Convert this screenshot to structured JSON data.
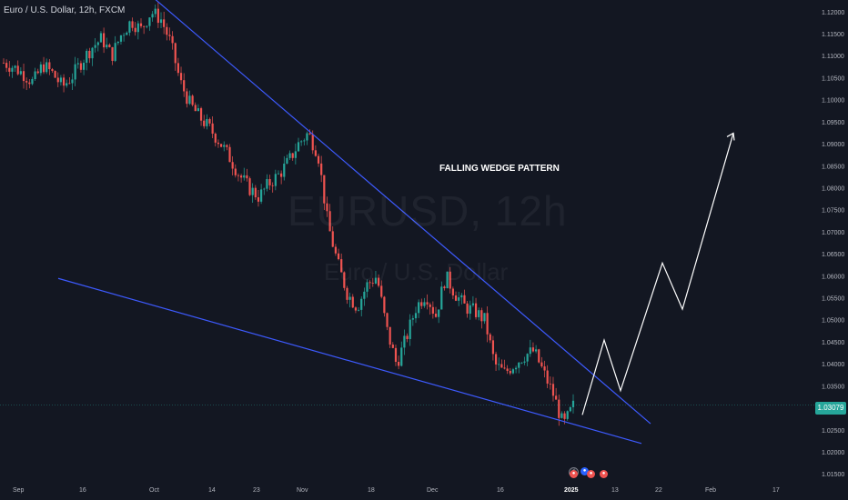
{
  "header": {
    "symbol_title": "Euro / U.S. Dollar, 12h, FXCM"
  },
  "annotations": {
    "pattern_label": "FALLING WEDGE PATTERN"
  },
  "watermark": {
    "symbol": "EURUSD, 12h",
    "description": "Euro / U.S. Dollar"
  },
  "current_price": {
    "label": "1.03079",
    "value": 1.03079,
    "color": "#26a69a"
  },
  "colors": {
    "background": "#131722",
    "up": "#26a69a",
    "down": "#ef5350",
    "trendline": "#3d5afe",
    "projection": "#ffffff"
  },
  "events": {
    "icons": [
      "lightning-icon",
      "flag-icon",
      "flag-icon",
      "flag-icon",
      "flag-icon"
    ]
  },
  "chart_data": {
    "type": "candlestick",
    "instrument": "EURUSD",
    "timeframe": "12h",
    "x_axis": {
      "ticks": [
        "Sep",
        "16",
        "Oct",
        "14",
        "23",
        "Nov",
        "18",
        "Dec",
        "16",
        "2025",
        "13",
        "22",
        "Feb",
        "17"
      ],
      "bold_tick": "2025"
    },
    "y_axis": {
      "ticks": [
        "1.12000",
        "1.11500",
        "1.11000",
        "1.10500",
        "1.10000",
        "1.09500",
        "1.09000",
        "1.08500",
        "1.08000",
        "1.07500",
        "1.07000",
        "1.06500",
        "1.06000",
        "1.05500",
        "1.05000",
        "1.04500",
        "1.04000",
        "1.03500",
        "1.03000",
        "1.02500",
        "1.02000",
        "1.01500"
      ],
      "range": [
        1.0135,
        1.1215
      ],
      "position": "right"
    },
    "price_path_closes": [
      1.1085,
      1.1075,
      1.106,
      1.104,
      1.108,
      1.106,
      1.103,
      1.1055,
      1.109,
      1.112,
      1.114,
      1.11,
      1.115,
      1.118,
      1.116,
      1.12,
      1.1185,
      1.113,
      1.104,
      1.099,
      1.096,
      1.0935,
      1.0905,
      1.087,
      1.083,
      1.08,
      1.078,
      1.081,
      1.083,
      1.086,
      1.09,
      1.0925,
      1.088,
      1.072,
      1.063,
      1.056,
      1.053,
      1.058,
      1.06,
      1.048,
      1.04,
      1.046,
      1.053,
      1.056,
      1.051,
      1.06,
      1.056,
      1.053,
      1.052,
      1.05,
      1.04,
      1.038,
      1.04,
      1.042,
      1.043,
      1.038,
      1.033,
      1.026,
      1.0305
    ],
    "trendlines": [
      {
        "name": "upper-wedge-line",
        "from": {
          "x": "early Sep",
          "y": 1.123
        },
        "via": {
          "x": "Nov",
          "y": 1.093
        },
        "to": {
          "x": "late Jan",
          "y": 1.0265
        }
      },
      {
        "name": "lower-wedge-line",
        "from": {
          "x": "Sep",
          "y": 1.0595
        },
        "to": {
          "x": "late Jan",
          "y": 1.022
        }
      }
    ],
    "projection_path": [
      1.0285,
      1.0455,
      1.034,
      1.063,
      1.0525,
      1.0925
    ],
    "annotations": [
      "FALLING WEDGE PATTERN"
    ],
    "grid": false
  }
}
